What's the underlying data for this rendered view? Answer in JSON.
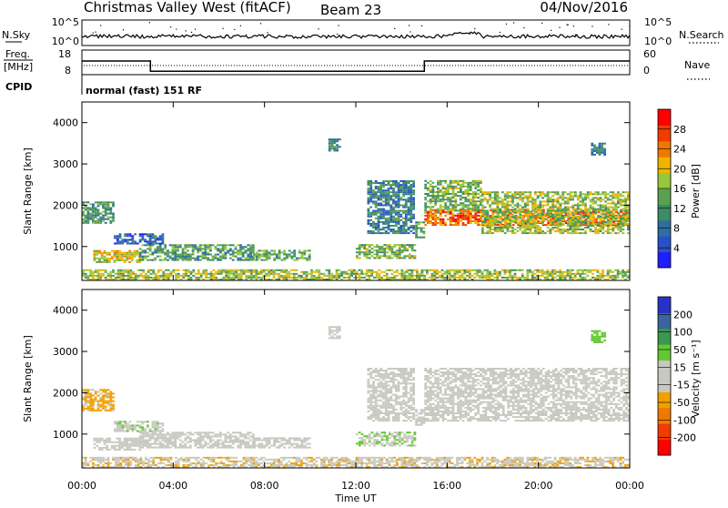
{
  "header": {
    "title": "Christmas Valley West (fitACF)",
    "beam": "Beam 23",
    "date": "04/Nov/2016"
  },
  "noise_panel": {
    "left_label": "N.Sky",
    "right_label": "N.Search",
    "left_ticks": [
      "10^5",
      "10^0"
    ],
    "right_ticks": [
      "10^5",
      "10^0"
    ]
  },
  "freq_panel": {
    "left_label_line1": "Freq.",
    "left_label_line2": "[MHz]",
    "right_label": "Nave",
    "left_ticks": [
      "18",
      "8"
    ],
    "right_ticks": [
      "60",
      "0"
    ],
    "cpid_label": "CPID",
    "mode_text": "normal (fast) 151 RF"
  },
  "colors": {
    "power_scale": [
      "#1e1eff",
      "#2850c8",
      "#2e6ea0",
      "#3c8c64",
      "#5aa050",
      "#96c83c",
      "#f0b400",
      "#f07800",
      "#f03c00",
      "#ff0000"
    ],
    "velocity_scale": [
      "#ff0000",
      "#f03c00",
      "#f07800",
      "#f0a000",
      "#c8c8c0",
      "#c8c8c0",
      "#64c832",
      "#3c9650",
      "#3c649c",
      "#2832c8"
    ]
  },
  "chart_data": [
    {
      "type": "heatmap",
      "name": "Power",
      "xlabel": "",
      "ylabel": "Slant Range [km]",
      "xlim": [
        "00:00",
        "24:00"
      ],
      "ylim": [
        180,
        4500
      ],
      "y_ticks": [
        1000,
        2000,
        3000,
        4000
      ],
      "colorbar": {
        "label": "Power [dB]",
        "ticks": [
          "4",
          "8",
          "12",
          "16",
          "20",
          "24",
          "28"
        ],
        "range": [
          0,
          30
        ]
      },
      "features": [
        {
          "t0": 0.0,
          "t1": 1.4,
          "r0": 1550,
          "r1": 2050,
          "value": 11
        },
        {
          "t0": 1.4,
          "t1": 3.5,
          "r0": 1050,
          "r1": 1300,
          "value": 6
        },
        {
          "t0": 0.5,
          "t1": 2.5,
          "r0": 600,
          "r1": 900,
          "value": 18
        },
        {
          "t0": 2.5,
          "t1": 7.5,
          "r0": 650,
          "r1": 1050,
          "value": 12
        },
        {
          "t0": 7.5,
          "t1": 10.0,
          "r0": 650,
          "r1": 900,
          "value": 13
        },
        {
          "t0": 12.0,
          "t1": 14.6,
          "r0": 700,
          "r1": 1050,
          "value": 14
        },
        {
          "t0": 10.8,
          "t1": 11.3,
          "r0": 3300,
          "r1": 3600,
          "value": 10
        },
        {
          "t0": 12.5,
          "t1": 14.5,
          "r0": 1300,
          "r1": 2600,
          "value": 9
        },
        {
          "t0": 14.6,
          "t1": 15.0,
          "r0": 1200,
          "r1": 1600,
          "value": 12
        },
        {
          "t0": 15.0,
          "t1": 17.5,
          "r0": 1800,
          "r1": 2600,
          "value": 14
        },
        {
          "t0": 15.0,
          "t1": 24.0,
          "r0": 1500,
          "r1": 1900,
          "value": 24
        },
        {
          "t0": 17.5,
          "t1": 24.0,
          "r0": 1300,
          "r1": 2300,
          "value": 16
        },
        {
          "t0": 22.3,
          "t1": 22.9,
          "r0": 3200,
          "r1": 3500,
          "value": 8
        },
        {
          "t0": 0.0,
          "t1": 24.0,
          "r0": 180,
          "r1": 450,
          "value": 16
        }
      ]
    },
    {
      "type": "heatmap",
      "name": "Velocity",
      "xlabel": "Time UT",
      "ylabel": "Slant Range [km]",
      "x_ticks": [
        "00:00",
        "04:00",
        "08:00",
        "12:00",
        "16:00",
        "20:00",
        "00:00"
      ],
      "xlim": [
        "00:00",
        "24:00"
      ],
      "ylim": [
        180,
        4500
      ],
      "y_ticks": [
        1000,
        2000,
        3000,
        4000
      ],
      "colorbar": {
        "label": "Velocity [m s⁻¹]",
        "ticks": [
          "-200",
          "-100",
          "-50",
          "-15",
          "15",
          "50",
          "100",
          "200"
        ],
        "range": [
          -250,
          250
        ]
      },
      "features": [
        {
          "t0": 0.0,
          "t1": 1.4,
          "r0": 1550,
          "r1": 2050,
          "value": -60
        },
        {
          "t0": 1.4,
          "t1": 3.5,
          "r0": 1050,
          "r1": 1300,
          "value": 40
        },
        {
          "t0": 0.5,
          "t1": 2.5,
          "r0": 600,
          "r1": 900,
          "value": 0
        },
        {
          "t0": 2.5,
          "t1": 7.5,
          "r0": 650,
          "r1": 1050,
          "value": 30
        },
        {
          "t0": 7.5,
          "t1": 10.0,
          "r0": 650,
          "r1": 900,
          "value": 0
        },
        {
          "t0": 12.0,
          "t1": 14.6,
          "r0": 700,
          "r1": 1050,
          "value": 45
        },
        {
          "t0": 10.8,
          "t1": 11.3,
          "r0": 3300,
          "r1": 3600,
          "value": 0
        },
        {
          "t0": 12.5,
          "t1": 14.5,
          "r0": 1300,
          "r1": 2600,
          "value": 30
        },
        {
          "t0": 14.6,
          "t1": 15.0,
          "r0": 1200,
          "r1": 1600,
          "value": 0
        },
        {
          "t0": 15.0,
          "t1": 24.0,
          "r0": 1300,
          "r1": 2600,
          "value": 0
        },
        {
          "t0": 22.3,
          "t1": 22.9,
          "r0": 3200,
          "r1": 3500,
          "value": 80
        },
        {
          "t0": 0.0,
          "t1": 24.0,
          "r0": 180,
          "r1": 450,
          "value": -40
        }
      ]
    }
  ]
}
